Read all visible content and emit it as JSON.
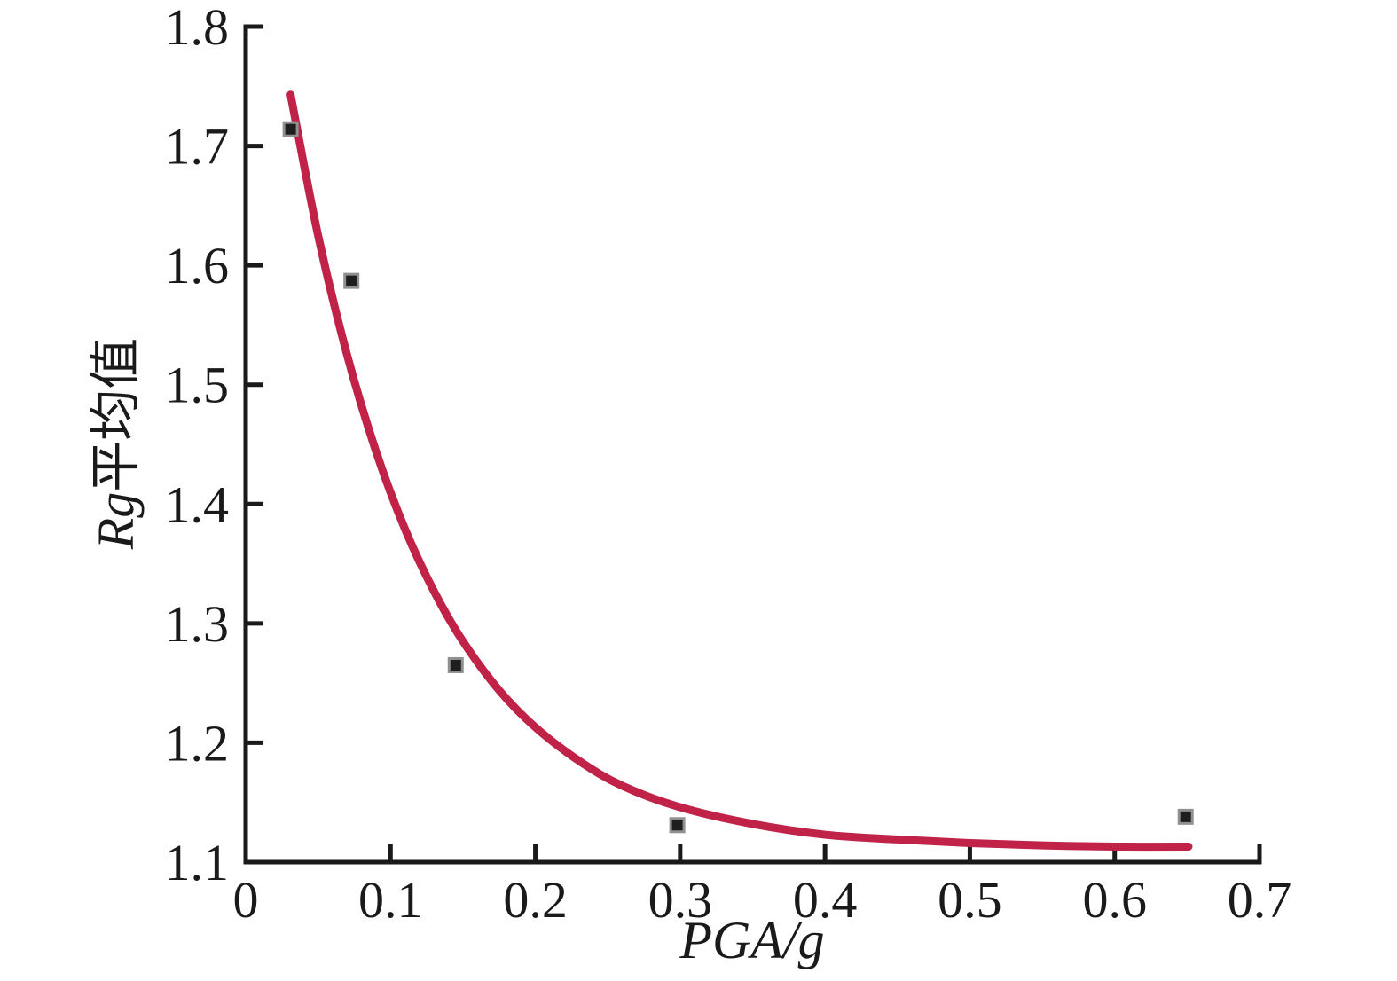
{
  "chart_data": {
    "type": "scatter",
    "title": "",
    "xlabel": "PGA/g",
    "ylabel": "Rg平均值",
    "ylabel_italic": "Rg",
    "ylabel_regular": "平均值",
    "xlim": [
      0,
      0.7
    ],
    "ylim": [
      1.1,
      1.8
    ],
    "x_tick_values": [
      0,
      0.1,
      0.2,
      0.3,
      0.4,
      0.5,
      0.6,
      0.7
    ],
    "x_tick_labels": [
      "0",
      "0.1",
      "0.2",
      "0.3",
      "0.4",
      "0.5",
      "0.6",
      "0.7"
    ],
    "y_tick_values": [
      1.1,
      1.2,
      1.3,
      1.4,
      1.5,
      1.6,
      1.7,
      1.8
    ],
    "y_tick_labels": [
      "1.1",
      "1.2",
      "1.3",
      "1.4",
      "1.5",
      "1.6",
      "1.7",
      "1.8"
    ],
    "grid": false,
    "legend": null,
    "series": [
      {
        "name": "Rg mean value data points",
        "kind": "scatter",
        "marker": "square",
        "points": [
          {
            "x": 0.031,
            "y": 1.714
          },
          {
            "x": 0.073,
            "y": 1.587
          },
          {
            "x": 0.145,
            "y": 1.265
          },
          {
            "x": 0.298,
            "y": 1.131
          },
          {
            "x": 0.649,
            "y": 1.138
          }
        ]
      },
      {
        "name": "fitted exponential decay curve",
        "kind": "line",
        "points": [
          {
            "x": 0.031,
            "y": 1.743
          },
          {
            "x": 0.05,
            "y": 1.625
          },
          {
            "x": 0.07,
            "y": 1.525
          },
          {
            "x": 0.09,
            "y": 1.444
          },
          {
            "x": 0.11,
            "y": 1.379
          },
          {
            "x": 0.13,
            "y": 1.327
          },
          {
            "x": 0.15,
            "y": 1.285
          },
          {
            "x": 0.175,
            "y": 1.244
          },
          {
            "x": 0.2,
            "y": 1.213
          },
          {
            "x": 0.23,
            "y": 1.185
          },
          {
            "x": 0.26,
            "y": 1.164
          },
          {
            "x": 0.3,
            "y": 1.146
          },
          {
            "x": 0.35,
            "y": 1.132
          },
          {
            "x": 0.4,
            "y": 1.123
          },
          {
            "x": 0.45,
            "y": 1.119
          },
          {
            "x": 0.5,
            "y": 1.116
          },
          {
            "x": 0.55,
            "y": 1.114
          },
          {
            "x": 0.6,
            "y": 1.113
          },
          {
            "x": 0.651,
            "y": 1.113
          }
        ]
      }
    ],
    "colors": {
      "axis": "#1a1a1a",
      "curve": "#c02347",
      "marker": "#1e1e1e",
      "marker_halo": "#909090"
    }
  }
}
